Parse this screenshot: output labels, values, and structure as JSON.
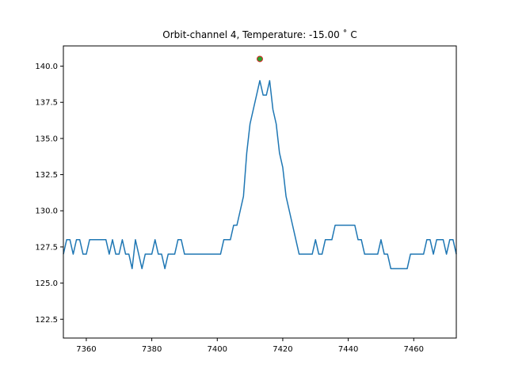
{
  "chart_data": {
    "type": "line",
    "title": "Orbit-channel 4, Temperature: -15.00  ˚ C",
    "xlabel": "",
    "ylabel": "",
    "xlim": [
      7353,
      7473
    ],
    "ylim": [
      121.2,
      141.4
    ],
    "grid": false,
    "x_ticks": [
      7360,
      7380,
      7400,
      7420,
      7440,
      7460
    ],
    "x_tick_labels": [
      "7360",
      "7380",
      "7400",
      "7420",
      "7440",
      "7460"
    ],
    "y_ticks": [
      122.5,
      125.0,
      127.5,
      130.0,
      132.5,
      135.0,
      137.5,
      140.0
    ],
    "y_tick_labels": [
      "122.5",
      "125.0",
      "127.5",
      "130.0",
      "132.5",
      "135.0",
      "137.5",
      "140.0"
    ],
    "series": [
      {
        "color": "#1f77b4",
        "x": [
          7353,
          7354,
          7355,
          7356,
          7357,
          7358,
          7359,
          7360,
          7361,
          7362,
          7363,
          7364,
          7365,
          7366,
          7367,
          7368,
          7369,
          7370,
          7371,
          7372,
          7373,
          7374,
          7375,
          7376,
          7377,
          7378,
          7379,
          7380,
          7381,
          7382,
          7383,
          7384,
          7385,
          7386,
          7387,
          7388,
          7389,
          7390,
          7391,
          7392,
          7393,
          7394,
          7395,
          7396,
          7397,
          7398,
          7399,
          7400,
          7401,
          7402,
          7403,
          7404,
          7405,
          7406,
          7407,
          7408,
          7409,
          7410,
          7411,
          7412,
          7413,
          7414,
          7415,
          7416,
          7417,
          7418,
          7419,
          7420,
          7421,
          7422,
          7423,
          7424,
          7425,
          7426,
          7427,
          7428,
          7429,
          7430,
          7431,
          7432,
          7433,
          7434,
          7435,
          7436,
          7437,
          7438,
          7439,
          7440,
          7441,
          7442,
          7443,
          7444,
          7445,
          7446,
          7447,
          7448,
          7449,
          7450,
          7451,
          7452,
          7453,
          7454,
          7455,
          7456,
          7457,
          7458,
          7459,
          7460,
          7461,
          7462,
          7463,
          7464,
          7465,
          7466,
          7467,
          7468,
          7469,
          7470,
          7471,
          7472,
          7473
        ],
        "y": [
          127,
          128,
          128,
          127,
          128,
          128,
          127,
          127,
          128,
          128,
          128,
          128,
          128,
          128,
          127,
          128,
          127,
          127,
          128,
          127,
          127,
          126,
          128,
          127,
          126,
          127,
          127,
          127,
          128,
          127,
          127,
          126,
          127,
          127,
          127,
          128,
          128,
          127,
          127,
          127,
          127,
          127,
          127,
          127,
          127,
          127,
          127,
          127,
          127,
          128,
          128,
          128,
          129,
          129,
          130,
          131,
          134,
          136,
          137,
          138,
          139,
          138,
          138,
          139,
          137,
          136,
          134,
          133,
          131,
          130,
          129,
          128,
          127,
          127,
          127,
          127,
          127,
          128,
          127,
          127,
          128,
          128,
          128,
          129,
          129,
          129,
          129,
          129,
          129,
          129,
          128,
          128,
          127,
          127,
          127,
          127,
          127,
          128,
          127,
          127,
          126,
          126,
          126,
          126,
          126,
          126,
          127,
          127,
          127,
          127,
          127,
          128,
          128,
          127,
          128,
          128,
          128,
          127,
          128,
          128,
          127
        ]
      }
    ],
    "markers": [
      {
        "x": 7413,
        "y": 140.5,
        "fill": "#2ca02c",
        "edge": "#d62728"
      }
    ]
  }
}
